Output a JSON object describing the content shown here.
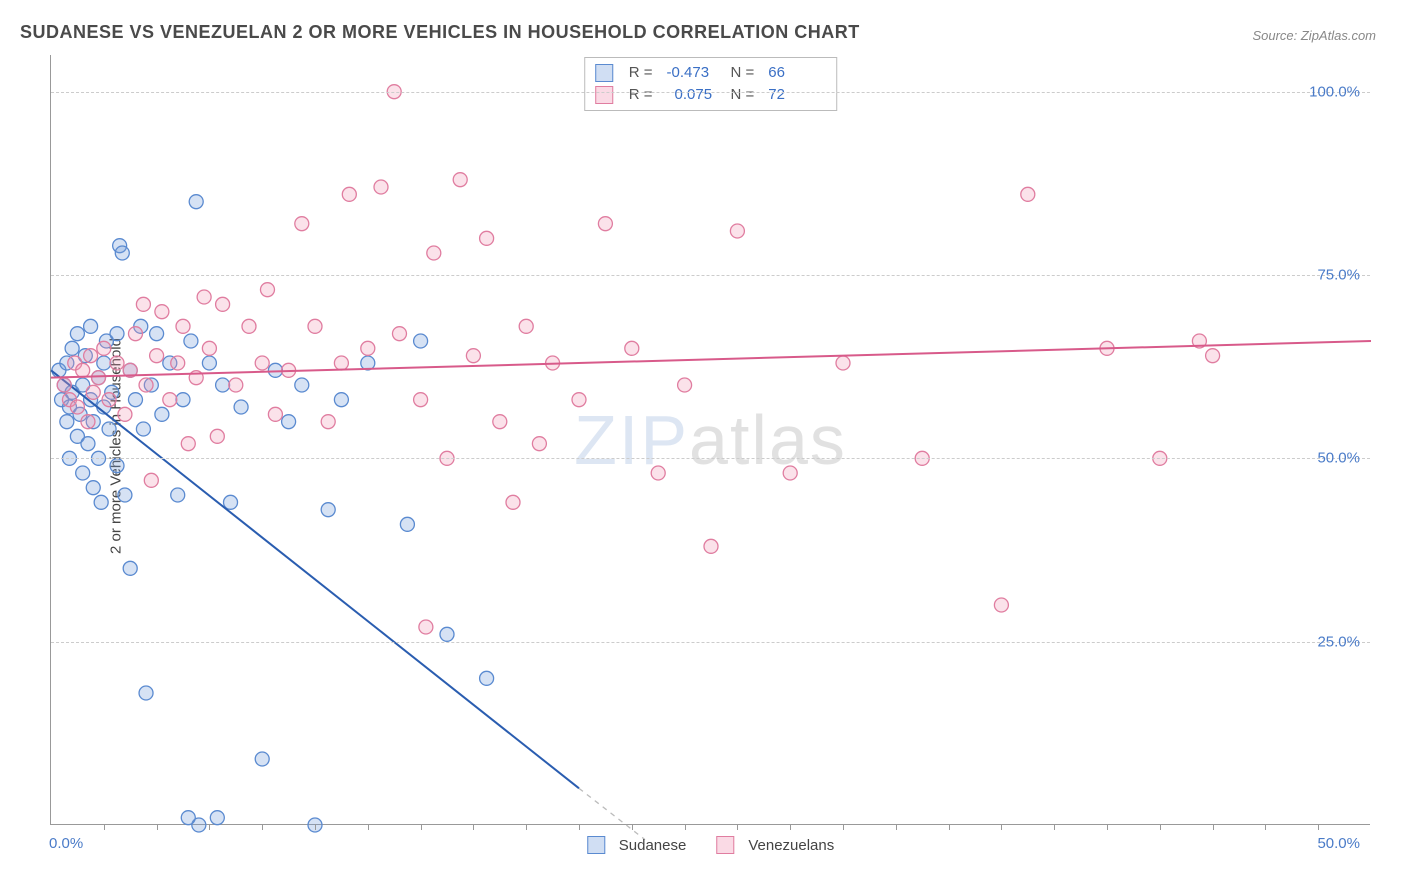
{
  "title": "SUDANESE VS VENEZUELAN 2 OR MORE VEHICLES IN HOUSEHOLD CORRELATION CHART",
  "source": "Source: ZipAtlas.com",
  "y_axis_label": "2 or more Vehicles in Household",
  "watermark_zip": "ZIP",
  "watermark_atlas": "atlas",
  "chart": {
    "type": "scatter",
    "xlim": [
      0,
      50
    ],
    "ylim": [
      0,
      105
    ],
    "x_ticks_label_min": "0.0%",
    "x_ticks_label_max": "50.0%",
    "y_major_ticks": [
      25,
      50,
      75,
      100
    ],
    "y_tick_labels": [
      "25.0%",
      "50.0%",
      "75.0%",
      "100.0%"
    ],
    "x_minor_ticks": [
      2,
      4,
      6,
      8,
      10,
      12,
      14,
      16,
      18,
      20,
      22,
      24,
      26,
      28,
      30,
      32,
      34,
      36,
      38,
      40,
      42,
      44,
      46,
      48
    ],
    "grid_color": "#cccccc",
    "axis_color": "#999999",
    "marker_radius": 7,
    "marker_stroke_width": 1.3,
    "trend_line_width": 2,
    "trend_dash_color": "#bbbbbb",
    "series": [
      {
        "name": "Sudanese",
        "fill": "rgba(120,160,220,0.30)",
        "stroke": "#5a8ad0",
        "R": "-0.473",
        "N": "66",
        "trend": {
          "x1": 0,
          "y1": 62,
          "x2": 20,
          "y2": 5,
          "extend_x2": 22.5,
          "extend_y2": -2,
          "color": "#2a5db0"
        },
        "points": [
          [
            0.3,
            62
          ],
          [
            0.4,
            58
          ],
          [
            0.5,
            60
          ],
          [
            0.6,
            55
          ],
          [
            0.6,
            63
          ],
          [
            0.7,
            50
          ],
          [
            0.7,
            57
          ],
          [
            0.8,
            59
          ],
          [
            0.8,
            65
          ],
          [
            1.0,
            53
          ],
          [
            1.0,
            67
          ],
          [
            1.1,
            56
          ],
          [
            1.2,
            48
          ],
          [
            1.2,
            60
          ],
          [
            1.3,
            64
          ],
          [
            1.4,
            52
          ],
          [
            1.5,
            58
          ],
          [
            1.5,
            68
          ],
          [
            1.6,
            55
          ],
          [
            1.6,
            46
          ],
          [
            1.8,
            61
          ],
          [
            1.8,
            50
          ],
          [
            2.0,
            57
          ],
          [
            2.0,
            63
          ],
          [
            2.1,
            66
          ],
          [
            2.2,
            54
          ],
          [
            2.3,
            59
          ],
          [
            2.5,
            49
          ],
          [
            2.5,
            67
          ],
          [
            2.6,
            79
          ],
          [
            2.7,
            78
          ],
          [
            2.8,
            45
          ],
          [
            3.0,
            62
          ],
          [
            3.0,
            35
          ],
          [
            3.2,
            58
          ],
          [
            3.4,
            68
          ],
          [
            3.5,
            54
          ],
          [
            3.6,
            18
          ],
          [
            3.8,
            60
          ],
          [
            4.0,
            67
          ],
          [
            4.2,
            56
          ],
          [
            4.5,
            63
          ],
          [
            4.8,
            45
          ],
          [
            5.0,
            58
          ],
          [
            5.3,
            66
          ],
          [
            5.5,
            85
          ],
          [
            5.6,
            0
          ],
          [
            6.0,
            63
          ],
          [
            6.5,
            60
          ],
          [
            6.8,
            44
          ],
          [
            7.2,
            57
          ],
          [
            8.0,
            9
          ],
          [
            8.5,
            62
          ],
          [
            9.0,
            55
          ],
          [
            9.5,
            60
          ],
          [
            10.0,
            0
          ],
          [
            10.5,
            43
          ],
          [
            11.0,
            58
          ],
          [
            12.0,
            63
          ],
          [
            13.5,
            41
          ],
          [
            14.0,
            66
          ],
          [
            15.0,
            26
          ],
          [
            16.5,
            20
          ],
          [
            5.2,
            1
          ],
          [
            6.3,
            1
          ],
          [
            1.9,
            44
          ]
        ]
      },
      {
        "name": "Venezuelans",
        "fill": "rgba(240,150,180,0.28)",
        "stroke": "#e07da0",
        "R": "0.075",
        "N": "72",
        "trend": {
          "x1": 0,
          "y1": 61,
          "x2": 50,
          "y2": 66,
          "color": "#d85a8a"
        },
        "points": [
          [
            0.5,
            60
          ],
          [
            0.7,
            58
          ],
          [
            0.9,
            63
          ],
          [
            1.0,
            57
          ],
          [
            1.2,
            62
          ],
          [
            1.4,
            55
          ],
          [
            1.5,
            64
          ],
          [
            1.6,
            59
          ],
          [
            1.8,
            61
          ],
          [
            2.0,
            65
          ],
          [
            2.2,
            58
          ],
          [
            2.5,
            63
          ],
          [
            2.8,
            56
          ],
          [
            3.0,
            62
          ],
          [
            3.2,
            67
          ],
          [
            3.5,
            71
          ],
          [
            3.6,
            60
          ],
          [
            3.8,
            47
          ],
          [
            4.0,
            64
          ],
          [
            4.2,
            70
          ],
          [
            4.5,
            58
          ],
          [
            4.8,
            63
          ],
          [
            5.0,
            68
          ],
          [
            5.2,
            52
          ],
          [
            5.5,
            61
          ],
          [
            5.8,
            72
          ],
          [
            6.0,
            65
          ],
          [
            6.3,
            53
          ],
          [
            6.5,
            71
          ],
          [
            7.0,
            60
          ],
          [
            7.5,
            68
          ],
          [
            8.0,
            63
          ],
          [
            8.2,
            73
          ],
          [
            8.5,
            56
          ],
          [
            9.0,
            62
          ],
          [
            9.5,
            82
          ],
          [
            10.0,
            68
          ],
          [
            10.5,
            55
          ],
          [
            11.0,
            63
          ],
          [
            11.3,
            86
          ],
          [
            12.0,
            65
          ],
          [
            12.5,
            87
          ],
          [
            13.0,
            100
          ],
          [
            13.2,
            67
          ],
          [
            14.0,
            58
          ],
          [
            14.5,
            78
          ],
          [
            15.0,
            50
          ],
          [
            15.5,
            88
          ],
          [
            16.0,
            64
          ],
          [
            16.5,
            80
          ],
          [
            17.0,
            55
          ],
          [
            17.5,
            44
          ],
          [
            18.0,
            68
          ],
          [
            18.5,
            52
          ],
          [
            19.0,
            63
          ],
          [
            20.0,
            58
          ],
          [
            21.0,
            82
          ],
          [
            22.0,
            65
          ],
          [
            23.0,
            48
          ],
          [
            24.0,
            60
          ],
          [
            25.0,
            38
          ],
          [
            26.0,
            81
          ],
          [
            28.0,
            48
          ],
          [
            30.0,
            63
          ],
          [
            33.0,
            50
          ],
          [
            36.0,
            30
          ],
          [
            37.0,
            86
          ],
          [
            40.0,
            65
          ],
          [
            42.0,
            50
          ],
          [
            43.5,
            66
          ],
          [
            44.0,
            64
          ],
          [
            14.2,
            27
          ]
        ]
      }
    ]
  },
  "stats_legend": {
    "r_label": "R =",
    "n_label": "N ="
  },
  "bottom_legend": {
    "items": [
      "Sudanese",
      "Venezuelans"
    ]
  },
  "colors": {
    "title": "#4a4a4a",
    "label_blue": "#4a7bc8",
    "stat_value": "#3a6fc5"
  }
}
